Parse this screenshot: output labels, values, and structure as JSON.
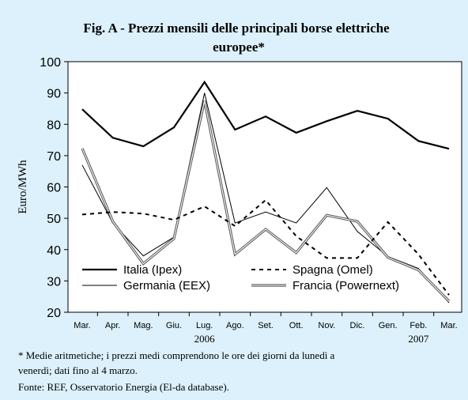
{
  "title": {
    "line1": "Fig. A -  Prezzi mensili delle principali borse elettriche",
    "line2": "europee*"
  },
  "notes": {
    "line1": "* Medie aritmetiche; i prezzi medi comprendono le ore dei giorni da lunedì a",
    "line2": "venerdì; dati fino al 4 marzo.",
    "source": "Fonte: REF, Osservatorio Energia (El-da database)."
  },
  "chart_data": {
    "type": "line",
    "ylabel": "Euro/MWh",
    "ylim": [
      20,
      100
    ],
    "yticks": [
      20,
      30,
      40,
      50,
      60,
      70,
      80,
      90,
      100
    ],
    "categories": [
      "Mar.",
      "Apr.",
      "Mag.",
      "Giu.",
      "Lug.",
      "Ago.",
      "Set.",
      "Ott.",
      "Nov.",
      "Dic.",
      "Gen.",
      "Feb.",
      "Mar."
    ],
    "year_labels": [
      {
        "label": "2006",
        "category_index": 4
      },
      {
        "label": "2007",
        "category_index": 11
      }
    ],
    "grid": false,
    "legend_position": "bottom-inside",
    "series": [
      {
        "name": "Italia (Ipex)",
        "style": "thick",
        "color": "#000000",
        "values": [
          84.8,
          75.7,
          73.0,
          79.0,
          93.5,
          78.3,
          82.5,
          77.3,
          81.0,
          84.3,
          81.8,
          74.7,
          72.2
        ]
      },
      {
        "name": "Spagna (Omel)",
        "style": "dashed",
        "color": "#000000",
        "values": [
          51.2,
          52.0,
          51.5,
          49.5,
          53.8,
          47.5,
          55.8,
          44.3,
          37.3,
          37.3,
          48.8,
          38.5,
          25.5
        ]
      },
      {
        "name": "Germania (EEX)",
        "style": "thin",
        "color": "#000000",
        "values": [
          67.0,
          48.5,
          38.0,
          44.0,
          90.0,
          48.5,
          52.0,
          48.5,
          59.8,
          45.8,
          37.8,
          34.0,
          23.0
        ]
      },
      {
        "name": "Francia (Powernext)",
        "style": "double",
        "color": "#000000",
        "values": [
          72.3,
          49.0,
          35.5,
          43.5,
          87.5,
          38.5,
          46.5,
          39.0,
          51.0,
          49.0,
          37.5,
          33.5,
          23.5
        ]
      }
    ]
  }
}
